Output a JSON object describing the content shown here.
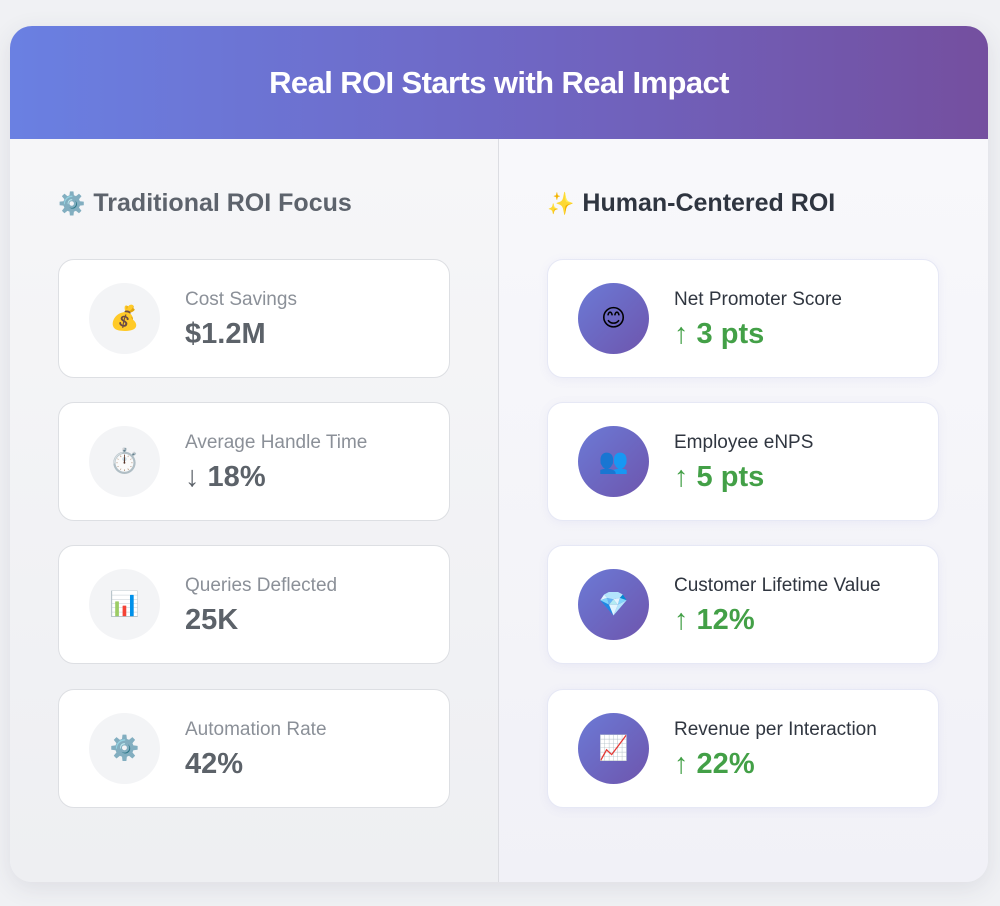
{
  "header": {
    "title": "Real ROI Starts with Real Impact"
  },
  "traditional": {
    "icon": "⚙️",
    "title": "Traditional ROI Focus",
    "metrics": [
      {
        "icon": "💰",
        "label": "Cost Savings",
        "value": "$1.2M"
      },
      {
        "icon": "⏱️",
        "label": "Average Handle Time",
        "value": "↓ 18%"
      },
      {
        "icon": "📊",
        "label": "Queries Deflected",
        "value": "25K"
      },
      {
        "icon": "⚙️",
        "label": "Automation Rate",
        "value": "42%"
      }
    ]
  },
  "human": {
    "icon": "✨",
    "title": "Human-Centered ROI",
    "metrics": [
      {
        "icon": "😊",
        "label": "Net Promoter Score",
        "value": "↑ 3 pts"
      },
      {
        "icon": "👥",
        "label": "Employee eNPS",
        "value": "↑ 5 pts"
      },
      {
        "icon": "💎",
        "label": "Customer Lifetime Value",
        "value": "↑ 12%"
      },
      {
        "icon": "📈",
        "label": "Revenue per Interaction",
        "value": "↑ 22%"
      }
    ]
  },
  "colors": {
    "header_gradient_start": "#6a80e2",
    "header_gradient_end": "#744f9f",
    "positive_value": "#43a047",
    "traditional_value": "#5c6269"
  }
}
